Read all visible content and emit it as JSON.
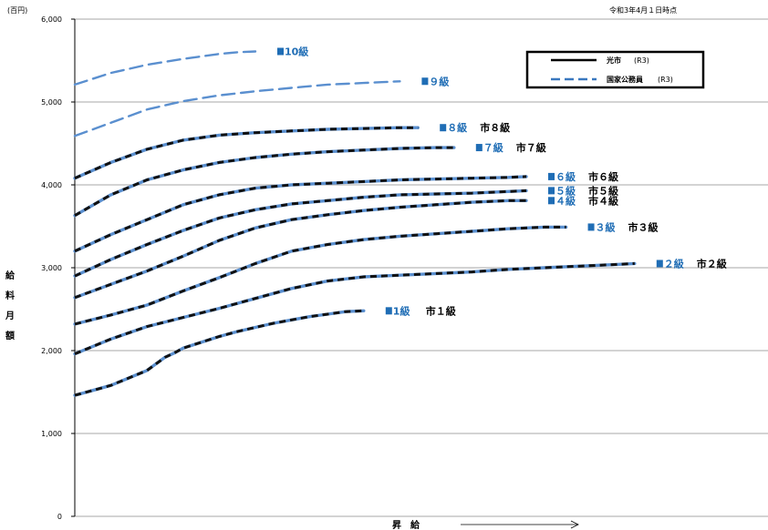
{
  "date_note": "令和3年4月１日時点",
  "chart_data": {
    "type": "line",
    "unit_label": "(百円)",
    "ylabel": "給料月額",
    "xlabel": "昇　給",
    "ylim": [
      0,
      6000
    ],
    "yticks": [
      "0",
      "1,000",
      "2,000",
      "3,000",
      "4,000",
      "5,000",
      "6,000"
    ],
    "grid": true,
    "legend_position": "top-right",
    "legend": [
      {
        "label": "光市",
        "sub": "(R3)",
        "style": "solid",
        "color": "#000000"
      },
      {
        "label": "国家公務員",
        "sub": "(R3)",
        "style": "dashed",
        "color": "#3A78BF"
      }
    ],
    "colors": {
      "city": "#111111",
      "national": "#5A8FCF",
      "label_blue": "#1F6DB5"
    },
    "series": [
      {
        "kokka_label": "国1級",
        "city_label": "市１級",
        "x": [
          0,
          10,
          20,
          30,
          40,
          50,
          55,
          60,
          70,
          80,
          90,
          100,
          110,
          120,
          130,
          140,
          150,
          160
        ],
        "values": [
          1460,
          1520,
          1580,
          1670,
          1760,
          1920,
          1970,
          2030,
          2100,
          2170,
          2230,
          2280,
          2330,
          2370,
          2410,
          2440,
          2470,
          2480
        ]
      },
      {
        "kokka_label": "国２級",
        "city_label": "市２級",
        "x": [
          0,
          20,
          40,
          60,
          80,
          100,
          120,
          140,
          160,
          180,
          200,
          220,
          240,
          260,
          280,
          300,
          310
        ],
        "values": [
          1960,
          2140,
          2290,
          2400,
          2510,
          2630,
          2750,
          2840,
          2890,
          2910,
          2930,
          2950,
          2980,
          3000,
          3020,
          3040,
          3050
        ]
      },
      {
        "kokka_label": "国３級",
        "city_label": "市３級",
        "x": [
          0,
          20,
          40,
          60,
          80,
          100,
          120,
          140,
          160,
          180,
          200,
          220,
          240,
          260,
          272
        ],
        "values": [
          2320,
          2430,
          2550,
          2720,
          2880,
          3050,
          3200,
          3280,
          3340,
          3380,
          3410,
          3440,
          3470,
          3490,
          3490
        ]
      },
      {
        "kokka_label": "国４級",
        "city_label": "市４級",
        "x": [
          0,
          20,
          40,
          60,
          80,
          100,
          120,
          140,
          160,
          180,
          200,
          220,
          240,
          250
        ],
        "values": [
          2640,
          2800,
          2960,
          3140,
          3330,
          3480,
          3580,
          3640,
          3690,
          3730,
          3760,
          3790,
          3810,
          3810
        ]
      },
      {
        "kokka_label": "国５級",
        "city_label": "市５級",
        "x": [
          0,
          20,
          40,
          60,
          80,
          100,
          120,
          140,
          160,
          180,
          200,
          220,
          240,
          250
        ],
        "values": [
          2900,
          3100,
          3280,
          3450,
          3600,
          3700,
          3770,
          3810,
          3850,
          3880,
          3890,
          3900,
          3920,
          3930
        ]
      },
      {
        "kokka_label": "国６級",
        "city_label": "市６級",
        "x": [
          0,
          20,
          40,
          60,
          80,
          100,
          120,
          140,
          160,
          180,
          200,
          220,
          240,
          250
        ],
        "values": [
          3200,
          3400,
          3580,
          3760,
          3880,
          3960,
          4000,
          4020,
          4040,
          4060,
          4070,
          4080,
          4090,
          4100
        ]
      },
      {
        "kokka_label": "国７級",
        "city_label": "市７級",
        "x": [
          0,
          20,
          40,
          60,
          80,
          100,
          120,
          140,
          160,
          180,
          200,
          210
        ],
        "values": [
          3630,
          3880,
          4060,
          4180,
          4270,
          4330,
          4370,
          4400,
          4420,
          4440,
          4450,
          4450
        ]
      },
      {
        "kokka_label": "国８級",
        "city_label": "市８級",
        "x": [
          0,
          20,
          40,
          60,
          80,
          100,
          120,
          140,
          160,
          180,
          190
        ],
        "values": [
          4080,
          4270,
          4430,
          4540,
          4600,
          4630,
          4650,
          4670,
          4680,
          4690,
          4690
        ]
      },
      {
        "kokka_label": "国９級",
        "city_label": "",
        "x": [
          0,
          20,
          40,
          60,
          80,
          100,
          120,
          140,
          160,
          170,
          180
        ],
        "values": [
          4590,
          4750,
          4910,
          5010,
          5080,
          5130,
          5170,
          5210,
          5230,
          5240,
          5250
        ]
      },
      {
        "kokka_label": "国10級",
        "city_label": "",
        "x": [
          0,
          20,
          40,
          60,
          80,
          90,
          100
        ],
        "values": [
          5210,
          5350,
          5450,
          5520,
          5580,
          5600,
          5610
        ]
      }
    ]
  }
}
